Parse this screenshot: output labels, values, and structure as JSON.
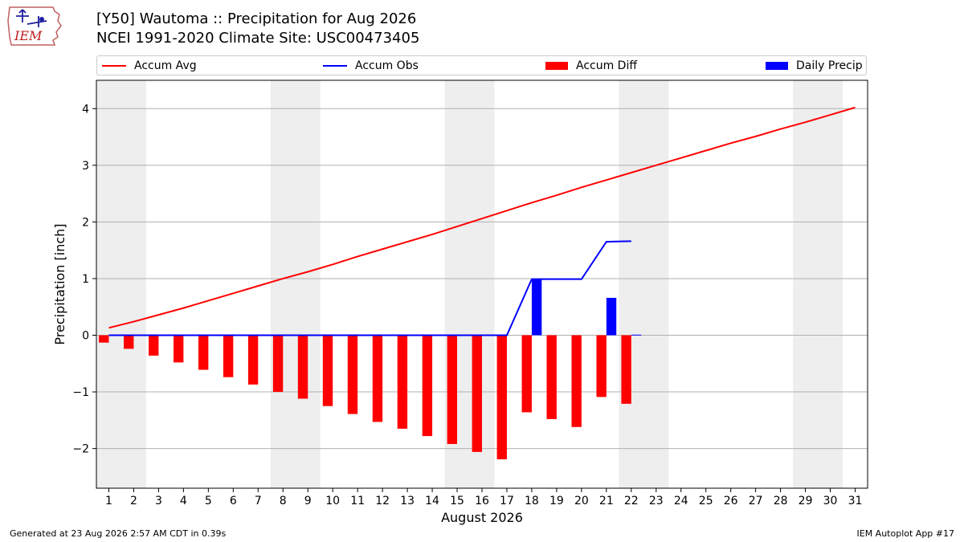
{
  "header": {
    "title_line1": "[Y50] Wautoma :: Precipitation for Aug 2026",
    "title_line2": "NCEI 1991-2020 Climate Site: USC00473405",
    "logo_text": "IEM"
  },
  "footer": {
    "generated": "Generated at 23 Aug 2026 2:57 AM CDT in 0.39s",
    "app": "IEM Autoplot App #17"
  },
  "colors": {
    "avg": "#ff0000",
    "obs": "#0000ff",
    "diff": "#ff0000",
    "precip": "#0000ff",
    "weekend_band": "#eeeeee",
    "grid": "#b0b0b0"
  },
  "chart_data": {
    "type": "bar",
    "xlabel": "August 2026",
    "ylabel": "Precipitation [inch]",
    "ylim": [
      -2.7,
      4.5
    ],
    "xlim": [
      0.5,
      31.5
    ],
    "grid": "horizontal",
    "legend": {
      "placement": "top",
      "entries": [
        "Accum Avg",
        "Accum Obs",
        "Accum Diff",
        "Daily Precip"
      ]
    },
    "x_ticks": [
      "1",
      "2",
      "3",
      "4",
      "5",
      "6",
      "7",
      "8",
      "9",
      "10",
      "11",
      "12",
      "13",
      "14",
      "15",
      "16",
      "17",
      "18",
      "19",
      "20",
      "21",
      "22",
      "23",
      "24",
      "25",
      "26",
      "27",
      "28",
      "29",
      "30",
      "31"
    ],
    "y_ticks": [
      -2,
      -1,
      0,
      1,
      2,
      3,
      4
    ],
    "y_tick_labels": [
      "−2",
      "−1",
      "0",
      "1",
      "2",
      "3",
      "4"
    ],
    "weekend_bands": [
      [
        1,
        2
      ],
      [
        8,
        9
      ],
      [
        15,
        16
      ],
      [
        22,
        23
      ],
      [
        29,
        30
      ]
    ],
    "series": [
      {
        "name": "Accum Avg",
        "kind": "line",
        "x": [
          1,
          2,
          3,
          4,
          5,
          6,
          7,
          8,
          9,
          10,
          11,
          12,
          13,
          14,
          15,
          16,
          17,
          18,
          19,
          20,
          21,
          22,
          23,
          24,
          25,
          26,
          27,
          28,
          29,
          30,
          31
        ],
        "values": [
          0.13,
          0.24,
          0.36,
          0.48,
          0.61,
          0.74,
          0.87,
          1.0,
          1.12,
          1.25,
          1.39,
          1.52,
          1.65,
          1.78,
          1.92,
          2.06,
          2.2,
          2.34,
          2.47,
          2.61,
          2.74,
          2.87,
          3.0,
          3.13,
          3.26,
          3.39,
          3.51,
          3.64,
          3.76,
          3.89,
          4.02
        ]
      },
      {
        "name": "Accum Obs",
        "kind": "line",
        "x": [
          1,
          2,
          3,
          4,
          5,
          6,
          7,
          8,
          9,
          10,
          11,
          12,
          13,
          14,
          15,
          16,
          17,
          18,
          19,
          20,
          21,
          22
        ],
        "values": [
          0,
          0,
          0,
          0,
          0,
          0,
          0,
          0,
          0,
          0,
          0,
          0,
          0,
          0,
          0,
          0,
          0,
          0.99,
          0.99,
          0.99,
          1.65,
          1.66
        ]
      },
      {
        "name": "Accum Diff",
        "kind": "bar",
        "x": [
          1,
          2,
          3,
          4,
          5,
          6,
          7,
          8,
          9,
          10,
          11,
          12,
          13,
          14,
          15,
          16,
          17,
          18,
          19,
          20,
          21,
          22
        ],
        "values": [
          -0.13,
          -0.24,
          -0.36,
          -0.48,
          -0.61,
          -0.74,
          -0.87,
          -1.0,
          -1.12,
          -1.25,
          -1.39,
          -1.53,
          -1.65,
          -1.78,
          -1.92,
          -2.06,
          -2.19,
          -1.36,
          -1.48,
          -1.62,
          -1.09,
          -1.21
        ]
      },
      {
        "name": "Daily Precip",
        "kind": "bar",
        "x": [
          1,
          2,
          3,
          4,
          5,
          6,
          7,
          8,
          9,
          10,
          11,
          12,
          13,
          14,
          15,
          16,
          17,
          18,
          19,
          20,
          21,
          22
        ],
        "values": [
          0,
          0,
          0,
          0,
          0,
          0,
          0,
          0,
          0,
          0,
          0,
          0,
          0,
          0,
          0,
          0,
          0,
          0.99,
          0,
          0,
          0.66,
          0.01
        ]
      }
    ]
  }
}
